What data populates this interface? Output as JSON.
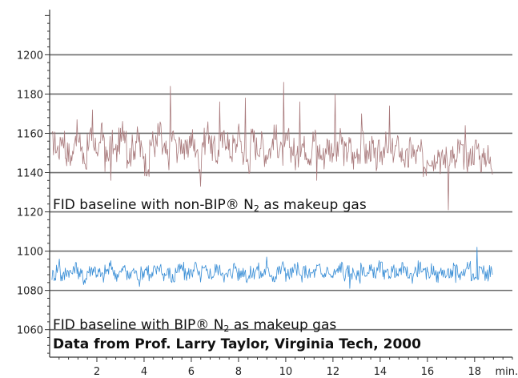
{
  "chart_data": {
    "type": "line",
    "x_unit": "min.",
    "xlim": [
      0,
      19.6
    ],
    "ylim": [
      1046,
      1223
    ],
    "x_ticks": [
      2,
      4,
      6,
      8,
      10,
      12,
      14,
      16,
      18
    ],
    "y_ticks": [
      1060,
      1080,
      1100,
      1120,
      1140,
      1160,
      1180,
      1200
    ],
    "grid": true,
    "series": [
      {
        "name_parts": [
          "FID baseline with non-BIP® N",
          "2",
          " as makeup gas"
        ],
        "color": "#a97a7c",
        "x_start": 0.1,
        "x_end": 18.6,
        "x_step": 0.2,
        "mean": 1152,
        "values": [
          1155,
          1152,
          1158,
          1150,
          1148,
          1160,
          1154,
          1146,
          1157,
          1151,
          1153,
          1159,
          1147,
          1155,
          1150,
          1156,
          1162,
          1149,
          1153,
          1157,
          1151,
          1145,
          1156,
          1154,
          1160,
          1150,
          1148,
          1158,
          1152,
          1155,
          1150,
          1157,
          1153,
          1147,
          1156,
          1161,
          1152,
          1149,
          1155,
          1158,
          1151,
          1154,
          1159,
          1150,
          1146,
          1157,
          1153,
          1155,
          1150,
          1152,
          1158,
          1154,
          1149,
          1156,
          1152,
          1147,
          1155,
          1153,
          1150,
          1157,
          1151,
          1148,
          1154,
          1152,
          1149,
          1156,
          1150,
          1153,
          1147,
          1151,
          1155,
          1149,
          1152,
          1146,
          1150,
          1154,
          1148,
          1151,
          1153,
          1149,
          1146,
          1152,
          1148,
          1150,
          1144,
          1149,
          1147,
          1151,
          1146,
          1148,
          1150,
          1145,
          1152,
          1148,
          1147,
          1150,
          1153,
          1146,
          1149,
          1145
        ],
        "spikes": [
          [
            1.8,
            1172
          ],
          [
            2.6,
            1136
          ],
          [
            5.1,
            1184
          ],
          [
            6.4,
            1133
          ],
          [
            7.2,
            1176
          ],
          [
            8.3,
            1178
          ],
          [
            9.9,
            1186
          ],
          [
            10.6,
            1176
          ],
          [
            12.1,
            1180
          ],
          [
            13.2,
            1170
          ],
          [
            14.4,
            1174
          ],
          [
            16.9,
            1121
          ],
          [
            17.6,
            1164
          ],
          [
            4.2,
            1138
          ],
          [
            11.3,
            1136
          ]
        ]
      },
      {
        "name_parts": [
          "FID baseline with BIP® N",
          "2",
          " as makeup gas"
        ],
        "color": "#3b8fd6",
        "x_start": 0.1,
        "x_end": 18.6,
        "x_step": 0.2,
        "mean": 1089,
        "values": [
          1088,
          1091,
          1087,
          1090,
          1089,
          1092,
          1088,
          1086,
          1090,
          1091,
          1089,
          1087,
          1090,
          1092,
          1088,
          1089,
          1091,
          1087,
          1090,
          1088,
          1089,
          1091,
          1087,
          1090,
          1092,
          1088,
          1089,
          1086,
          1090,
          1091,
          1088,
          1089,
          1092,
          1087,
          1090,
          1089,
          1088,
          1091,
          1090,
          1087,
          1089,
          1092,
          1088,
          1090,
          1087,
          1089,
          1091,
          1088,
          1090,
          1089,
          1087,
          1090,
          1092,
          1088,
          1089,
          1091,
          1087,
          1090,
          1088,
          1089,
          1091,
          1088,
          1090,
          1087,
          1089,
          1092,
          1088,
          1090,
          1089,
          1087,
          1091,
          1088,
          1090,
          1089,
          1092,
          1087,
          1089,
          1090,
          1088,
          1091,
          1089,
          1087,
          1090,
          1092,
          1088,
          1089,
          1091,
          1087,
          1090,
          1088,
          1089,
          1091,
          1088,
          1090,
          1093,
          1087,
          1089,
          1091,
          1088,
          1090
        ],
        "spikes": [
          [
            0.4,
            1096
          ],
          [
            3.8,
            1082
          ],
          [
            9.2,
            1097
          ],
          [
            12.7,
            1081
          ],
          [
            18.1,
            1102
          ],
          [
            17.2,
            1084
          ]
        ]
      }
    ],
    "annotations": [
      "Data from Prof. Larry Taylor, Virginia Tech, 2000"
    ]
  }
}
